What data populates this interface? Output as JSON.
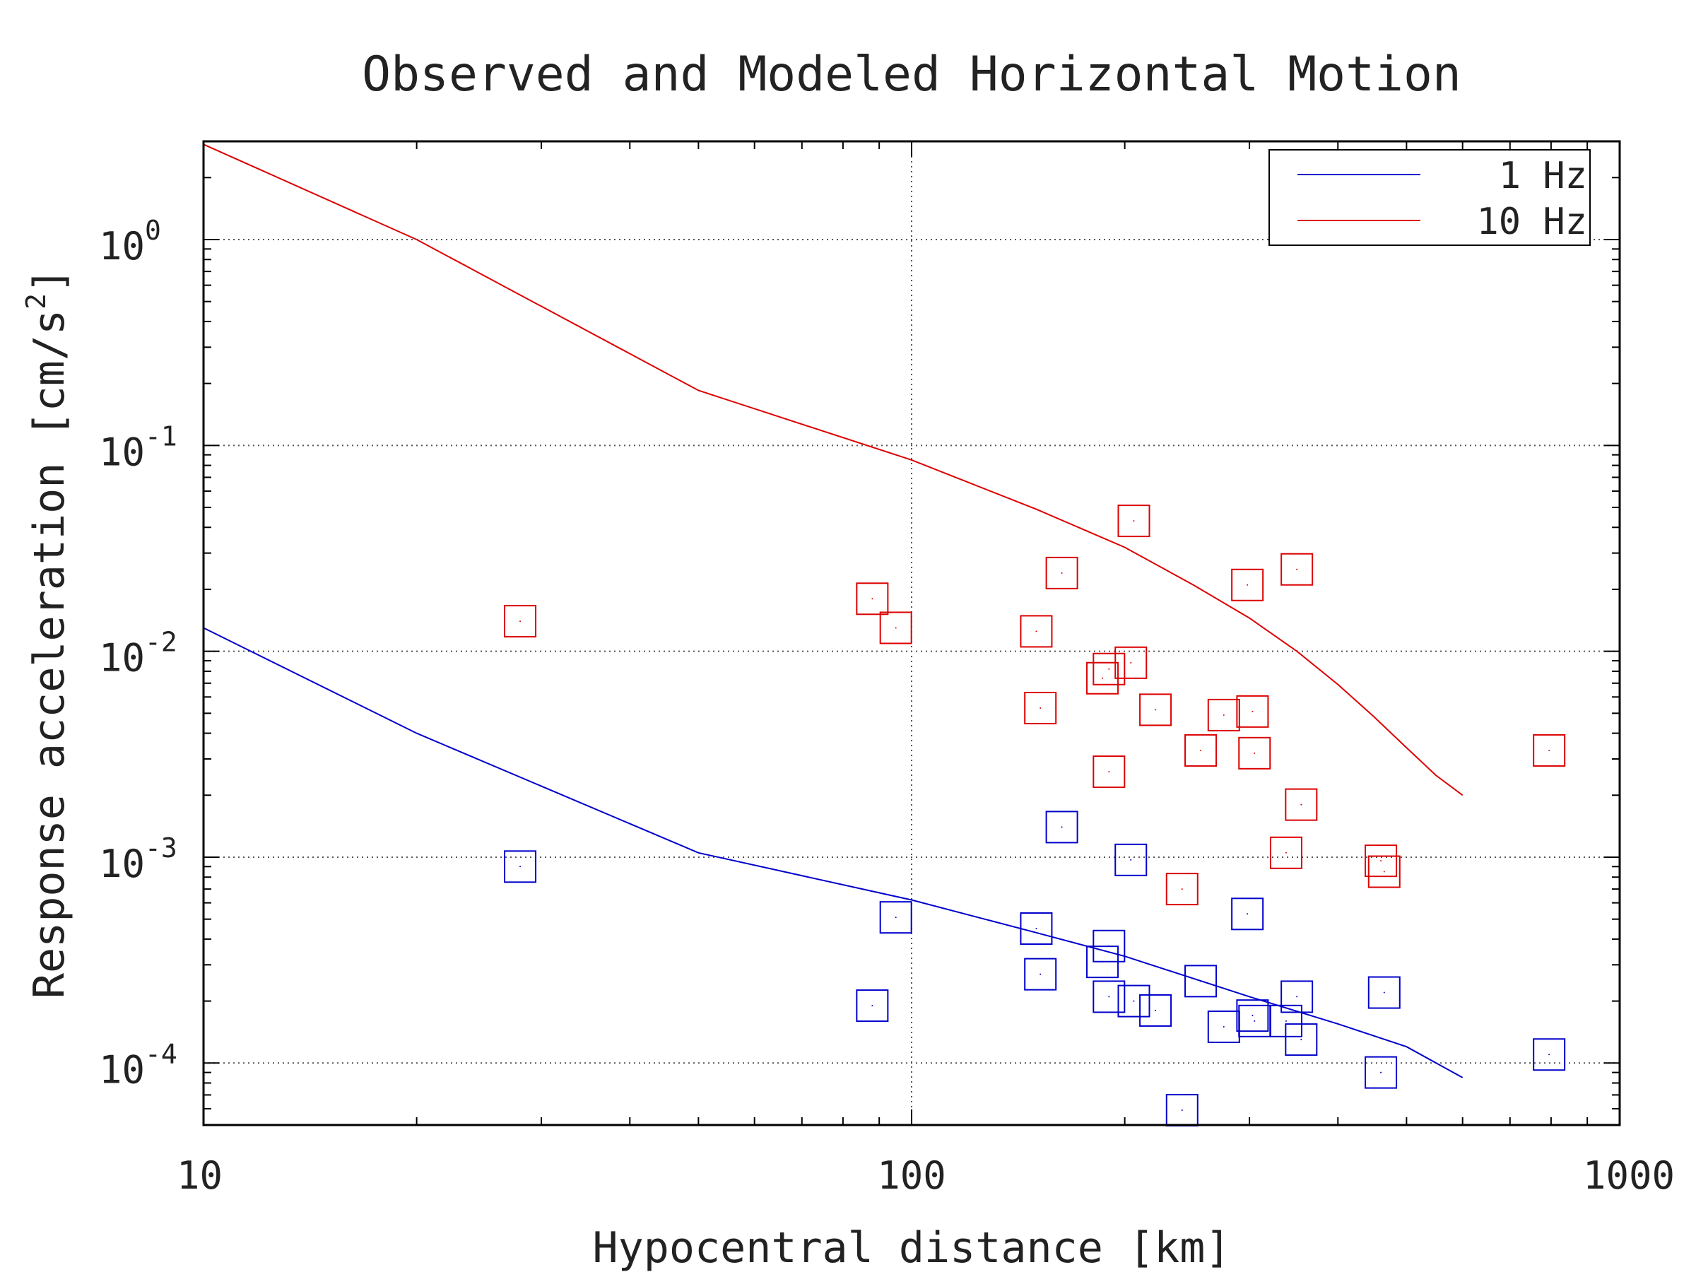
{
  "chart_data": {
    "type": "scatter",
    "title": "Observed and Modeled Horizontal Motion",
    "xlabel": "Hypocentral distance [km]",
    "ylabel": "Response acceleration [cm/s",
    "ylabel_sup": "2",
    "ylabel_close": "]",
    "x_scale": "log",
    "y_scale": "log",
    "xlim": [
      10,
      1000
    ],
    "ylim": [
      5e-05,
      3
    ],
    "x_ticks": [
      {
        "value": 10,
        "label": "10"
      },
      {
        "value": 100,
        "label": "100"
      },
      {
        "value": 1000,
        "label": "1000"
      }
    ],
    "y_ticks": [
      {
        "value": 1,
        "base": "10",
        "exp": "0"
      },
      {
        "value": 0.1,
        "base": "10",
        "exp": "-1"
      },
      {
        "value": 0.01,
        "base": "10",
        "exp": "-2"
      },
      {
        "value": 0.001,
        "base": "10",
        "exp": "-3"
      },
      {
        "value": 0.0001,
        "base": "10",
        "exp": "-4"
      }
    ],
    "grid": true,
    "legend_position": "top-right",
    "series": [
      {
        "name": "1 Hz",
        "color": "#0000cc",
        "line": {
          "x": [
            10,
            20,
            50,
            100,
            150,
            200,
            300,
            400,
            500,
            600
          ],
          "y": [
            0.013,
            0.004,
            0.00105,
            0.00062,
            0.00043,
            0.00033,
            0.00021,
            0.000155,
            0.00012,
            8.5e-05
          ]
        },
        "points": {
          "x": [
            28,
            88,
            95,
            150,
            152,
            163,
            186,
            190,
            190,
            204,
            206,
            221,
            241,
            256,
            276,
            298,
            303,
            305,
            338,
            350,
            355,
            460,
            465,
            795
          ],
          "y": [
            0.0009,
            0.00019,
            0.00051,
            0.00045,
            0.00027,
            0.0014,
            0.00031,
            0.00037,
            0.00021,
            0.00097,
            0.0002,
            0.00018,
            5.9e-05,
            0.00025,
            0.00015,
            0.00053,
            0.00017,
            0.00016,
            0.00016,
            0.00021,
            0.00013,
            9e-05,
            0.00022,
            0.00011
          ]
        }
      },
      {
        "name": "10 Hz",
        "color": "#dd0000",
        "line": {
          "x": [
            10,
            20,
            50,
            100,
            150,
            200,
            250,
            300,
            350,
            400,
            450,
            500,
            550,
            600
          ],
          "y": [
            2.9,
            1.0,
            0.185,
            0.085,
            0.049,
            0.032,
            0.021,
            0.0145,
            0.01,
            0.0069,
            0.0048,
            0.0034,
            0.0025,
            0.002
          ]
        },
        "points": {
          "x": [
            28,
            88,
            95,
            150,
            152,
            163,
            186,
            190,
            190,
            204,
            206,
            221,
            241,
            256,
            276,
            298,
            303,
            305,
            338,
            350,
            355,
            460,
            465,
            795
          ],
          "y": [
            0.014,
            0.018,
            0.013,
            0.0125,
            0.0053,
            0.024,
            0.0074,
            0.0082,
            0.0026,
            0.0088,
            0.043,
            0.0052,
            0.0007,
            0.0033,
            0.0049,
            0.021,
            0.0051,
            0.0032,
            0.00105,
            0.025,
            0.0018,
            0.00096,
            0.00085,
            0.0033
          ]
        }
      }
    ]
  }
}
